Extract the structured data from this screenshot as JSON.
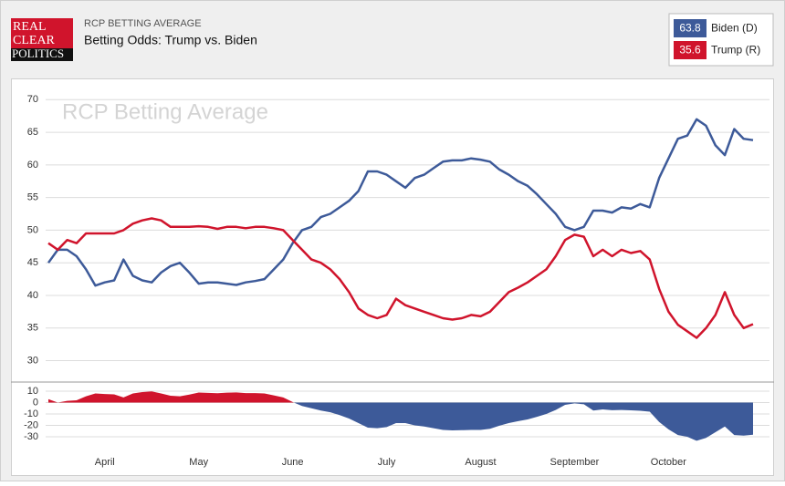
{
  "header": {
    "logo": [
      "REAL",
      "CLEAR",
      "POLITICS"
    ],
    "kicker": "RCP BETTING AVERAGE",
    "title": "Betting Odds: Trump vs. Biden"
  },
  "chart_data": [
    {
      "type": "line",
      "watermark": "RCP Betting Average",
      "grid": true,
      "ylim": [
        27,
        72
      ],
      "yticks": [
        30,
        35,
        40,
        45,
        50,
        55,
        60,
        65,
        70
      ],
      "categories": [
        null,
        null,
        null,
        null,
        null,
        null,
        "April",
        null,
        null,
        null,
        null,
        null,
        null,
        null,
        null,
        null,
        "May",
        null,
        null,
        null,
        null,
        null,
        null,
        null,
        null,
        null,
        "June",
        null,
        null,
        null,
        null,
        null,
        null,
        null,
        null,
        null,
        "July",
        null,
        null,
        null,
        null,
        null,
        null,
        null,
        null,
        null,
        "August",
        null,
        null,
        null,
        null,
        null,
        null,
        null,
        null,
        null,
        "September",
        null,
        null,
        null,
        null,
        null,
        null,
        null,
        null,
        null,
        "October",
        null,
        null,
        null,
        null,
        null,
        null,
        null,
        null,
        null
      ],
      "series": [
        {
          "name": "Biden (D)",
          "latest": 63.8,
          "color": "#3d5a99",
          "values": [
            45,
            47,
            47,
            46,
            44,
            41.5,
            42,
            42.3,
            45.5,
            43,
            42.3,
            42,
            43.5,
            44.5,
            45,
            43.5,
            41.8,
            42,
            42,
            41.8,
            41.6,
            42,
            42.2,
            42.5,
            44,
            45.5,
            48,
            50,
            50.5,
            52,
            52.5,
            53.5,
            54.5,
            56,
            59,
            59,
            58.5,
            57.5,
            56.5,
            58,
            58.5,
            59.5,
            60.5,
            60.7,
            60.7,
            61,
            60.8,
            60.5,
            59.3,
            58.5,
            57.5,
            56.8,
            55.5,
            54,
            52.5,
            50.5,
            50,
            50.5,
            53,
            53,
            52.7,
            53.5,
            53.3,
            54,
            53.5,
            58,
            61,
            64,
            64.5,
            67,
            66,
            63,
            61.5,
            65.5,
            64,
            63.8
          ]
        },
        {
          "name": "Trump (R)",
          "latest": 35.6,
          "color": "#d0142c",
          "values": [
            48,
            47,
            48.5,
            48,
            49.5,
            49.5,
            49.5,
            49.5,
            50,
            51,
            51.5,
            51.8,
            51.5,
            50.5,
            50.5,
            50.5,
            50.6,
            50.5,
            50.2,
            50.5,
            50.5,
            50.3,
            50.5,
            50.5,
            50.3,
            50,
            48.5,
            47,
            45.5,
            45,
            44,
            42.5,
            40.5,
            38,
            37,
            36.5,
            37,
            39.5,
            38.5,
            38,
            37.5,
            37,
            36.5,
            36.3,
            36.5,
            37,
            36.8,
            37.5,
            39,
            40.5,
            41.2,
            42,
            43,
            44,
            46,
            48.5,
            49.3,
            49,
            46,
            47,
            46,
            47,
            46.5,
            46.8,
            45.5,
            41,
            37.5,
            35.5,
            34.5,
            33.5,
            35,
            37,
            40.5,
            37,
            35,
            35.6
          ]
        }
      ]
    },
    {
      "type": "area",
      "grid": true,
      "ylim": [
        -38,
        18
      ],
      "yticks": [
        10,
        0,
        -10,
        -20,
        -30
      ],
      "positive_color": "#d0142c",
      "negative_color": "#3d5a99",
      "values": [
        3,
        0,
        1.5,
        2,
        5.5,
        8,
        7.5,
        7.2,
        4.5,
        8,
        9.2,
        9.8,
        8,
        6,
        5.5,
        7,
        8.8,
        8.5,
        8.2,
        8.7,
        8.9,
        8.3,
        8.3,
        8,
        6.3,
        4.5,
        0.5,
        -3,
        -5,
        -7,
        -8.5,
        -11,
        -14,
        -18,
        -22,
        -22.5,
        -21.5,
        -18,
        -18,
        -20,
        -21,
        -22.5,
        -24,
        -24.4,
        -24.2,
        -24,
        -24,
        -23,
        -20.3,
        -18,
        -16.3,
        -14.8,
        -12.5,
        -10,
        -6.5,
        -2,
        -0.7,
        -1.5,
        -7,
        -6,
        -6.7,
        -6.5,
        -6.8,
        -7.2,
        -8,
        -17,
        -23.5,
        -28.5,
        -30,
        -33.5,
        -31,
        -26,
        -21,
        -28.5,
        -29,
        -28.2
      ]
    }
  ]
}
